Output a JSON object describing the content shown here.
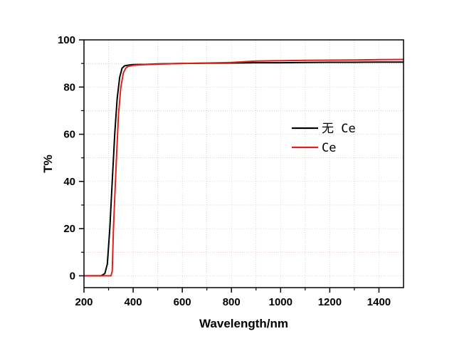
{
  "chart_data": {
    "type": "line",
    "xlabel": "Wavelength/nm",
    "ylabel": "T%",
    "xlim": [
      200,
      1500
    ],
    "ylim": [
      -5,
      100
    ],
    "xticks": [
      200,
      400,
      600,
      800,
      1000,
      1200,
      1400
    ],
    "yticks": [
      0,
      20,
      40,
      60,
      80,
      100
    ],
    "grid": true,
    "legend_position": "center-right",
    "series": [
      {
        "name": "无 Ce",
        "color": "#000000",
        "x": [
          200,
          270,
          285,
          295,
          305,
          315,
          325,
          335,
          345,
          355,
          365,
          380,
          400,
          450,
          500,
          600,
          700,
          800,
          900,
          1000,
          1100,
          1200,
          1300,
          1400,
          1500
        ],
        "y": [
          0,
          0,
          1,
          5,
          20,
          40,
          60,
          75,
          84,
          88,
          89,
          89.3,
          89.5,
          89.6,
          89.8,
          90.0,
          90.1,
          90.2,
          90.3,
          90.3,
          90.4,
          90.5,
          90.5,
          90.6,
          90.6
        ]
      },
      {
        "name": "Ce",
        "color": "#e0201b",
        "x": [
          200,
          300,
          310,
          315,
          320,
          330,
          340,
          350,
          360,
          370,
          380,
          400,
          450,
          500,
          600,
          700,
          800,
          900,
          1000,
          1100,
          1200,
          1300,
          1400,
          1500
        ],
        "y": [
          0,
          0,
          0,
          2,
          20,
          45,
          68,
          80,
          86,
          88,
          88.8,
          89.2,
          89.5,
          89.7,
          90.0,
          90.2,
          90.4,
          91.0,
          91.2,
          91.3,
          91.4,
          91.5,
          91.6,
          91.7
        ]
      }
    ]
  }
}
